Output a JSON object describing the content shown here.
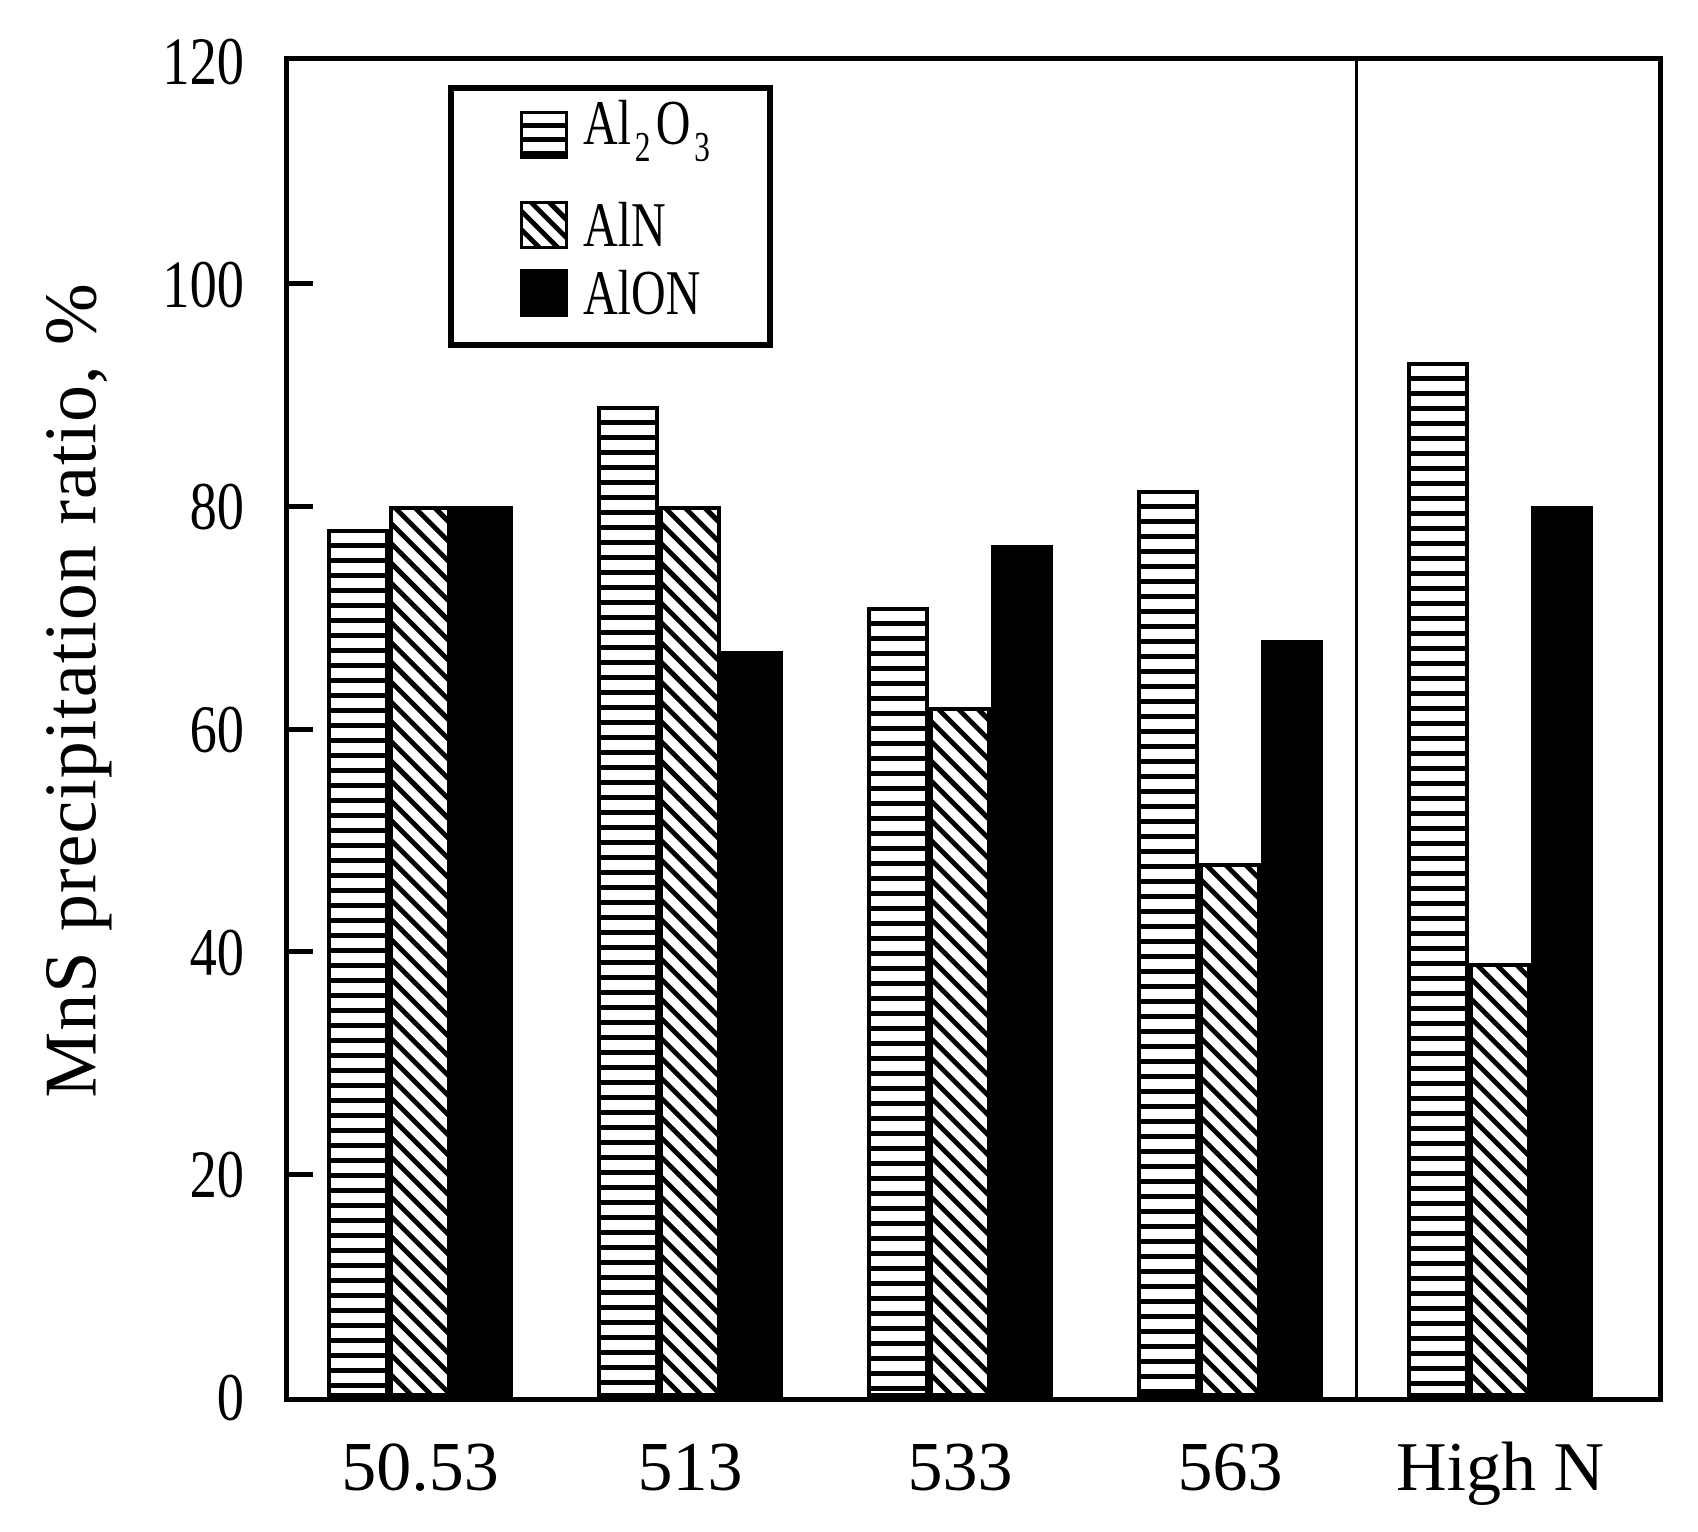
{
  "chart_data": {
    "type": "bar",
    "title": "",
    "xlabel": "",
    "ylabel": "MnS precipitation ratio, %",
    "ylim": [
      0,
      120
    ],
    "yticks": [
      0,
      20,
      40,
      60,
      80,
      100,
      120
    ],
    "categories": [
      "50.53",
      "513",
      "533",
      "563",
      "High N"
    ],
    "series": [
      {
        "name": "Al2O3",
        "pattern": "horizontal-stripes",
        "values": [
          78,
          89,
          71,
          81.5,
          93
        ]
      },
      {
        "name": "AlN",
        "pattern": "diagonal-stripes",
        "values": [
          80,
          80,
          62,
          48,
          39
        ]
      },
      {
        "name": "AlON",
        "pattern": "solid-black",
        "values": [
          80,
          67,
          76.5,
          68,
          80
        ]
      }
    ],
    "separator_after_category": "563",
    "legend_position": "top-left-inside",
    "grid": false
  },
  "legend": {
    "items": [
      {
        "name": "Al2O3",
        "pattern": "horizontal-stripes",
        "parts": [
          {
            "text": "Al"
          },
          {
            "text": "2",
            "sub": true
          },
          {
            "text": "O"
          },
          {
            "text": "3",
            "sub": true
          }
        ]
      },
      {
        "name": "AlN",
        "pattern": "diagonal-stripes",
        "parts": [
          {
            "text": "AlN"
          }
        ]
      },
      {
        "name": "AlON",
        "pattern": "solid-black",
        "parts": [
          {
            "text": "AlON"
          }
        ]
      }
    ]
  },
  "colors": {
    "foreground": "#000000",
    "background": "#ffffff"
  }
}
